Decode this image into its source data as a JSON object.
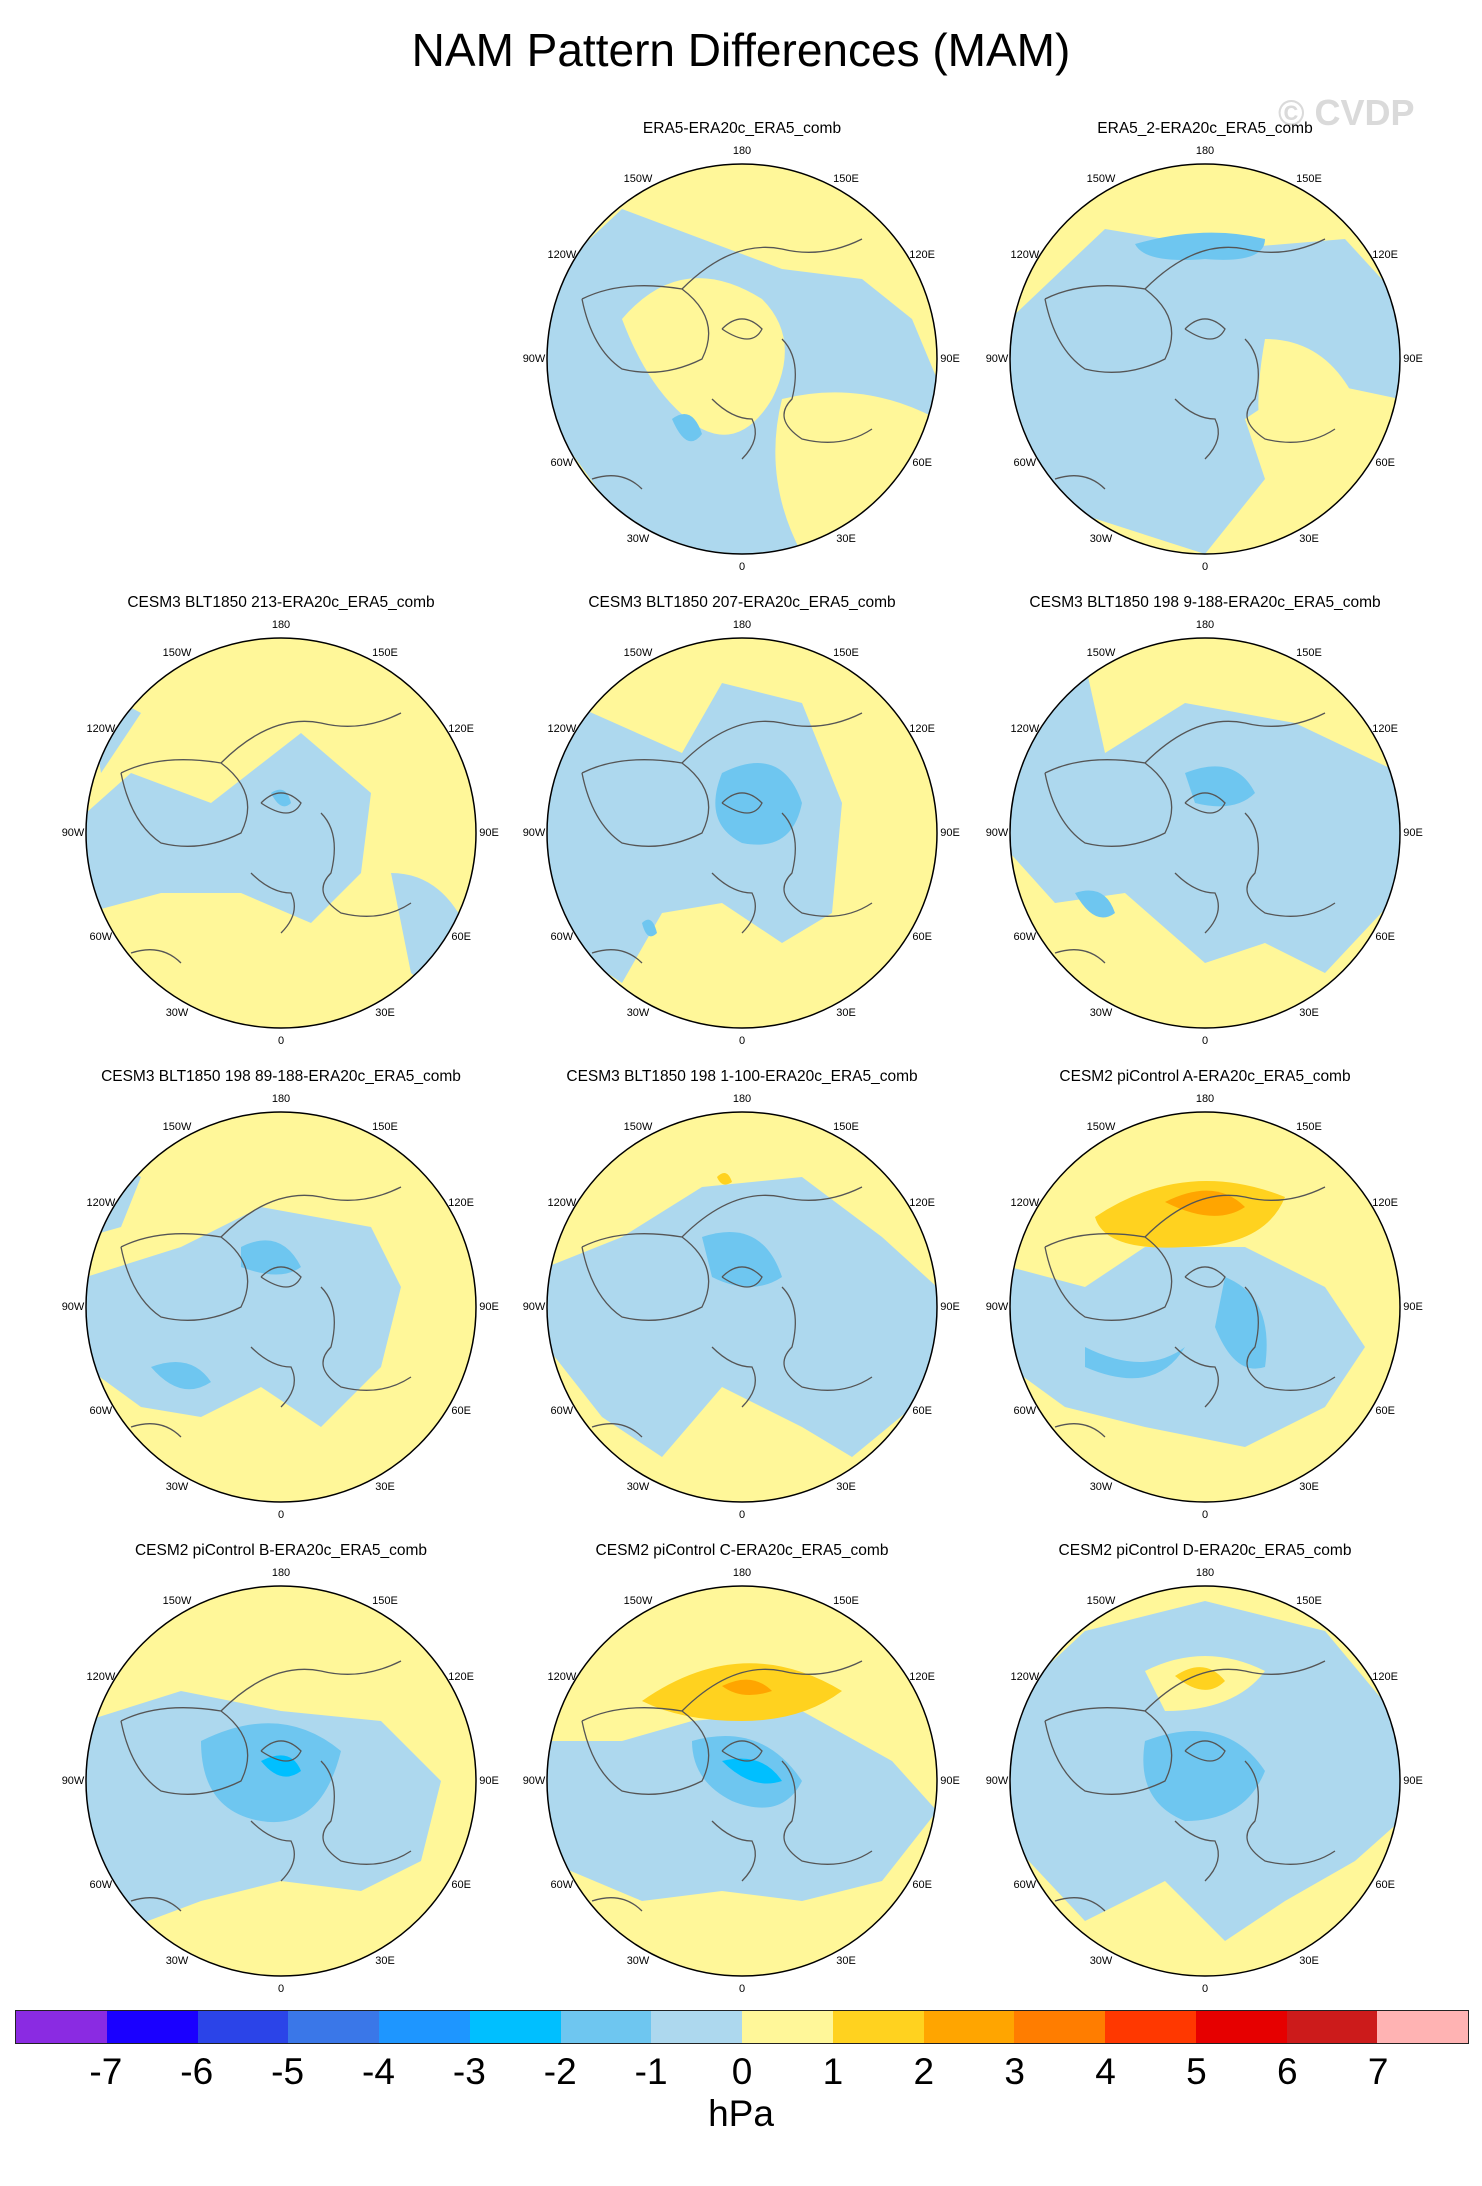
{
  "title": "NAM Pattern Differences (MAM)",
  "watermark": "© CVDP",
  "lon_labels": [
    "180",
    "150E",
    "120E",
    "90E",
    "60E",
    "30E",
    "0",
    "30W",
    "60W",
    "90W",
    "120W",
    "150W"
  ],
  "panels": [
    {
      "title": "ERA5-ERA20c_ERA5_comb",
      "pattern": "A"
    },
    {
      "title": "ERA5_2-ERA20c_ERA5_comb",
      "pattern": "B"
    },
    {
      "title": "CESM3 BLT1850 213-ERA20c_ERA5_comb",
      "pattern": "C"
    },
    {
      "title": "CESM3 BLT1850 207-ERA20c_ERA5_comb",
      "pattern": "D"
    },
    {
      "title": "CESM3 BLT1850 198 9-188-ERA20c_ERA5_comb",
      "pattern": "E"
    },
    {
      "title": "CESM3 BLT1850 198 89-188-ERA20c_ERA5_comb",
      "pattern": "F"
    },
    {
      "title": "CESM3 BLT1850 198 1-100-ERA20c_ERA5_comb",
      "pattern": "G"
    },
    {
      "title": "CESM2 piControl A-ERA20c_ERA5_comb",
      "pattern": "H"
    },
    {
      "title": "CESM2 piControl B-ERA20c_ERA5_comb",
      "pattern": "I"
    },
    {
      "title": "CESM2 piControl C-ERA20c_ERA5_comb",
      "pattern": "J"
    },
    {
      "title": "CESM2 piControl D-ERA20c_ERA5_comb",
      "pattern": "K"
    }
  ],
  "colorbar": {
    "colors": [
      "#8a2be2",
      "#1a00ff",
      "#2b44e8",
      "#3a77e8",
      "#1e96ff",
      "#00bfff",
      "#6ec6f0",
      "#add8ee",
      "#fff799",
      "#ffd21f",
      "#ffa500",
      "#ff7d00",
      "#ff3800",
      "#e60000",
      "#cc1b1b",
      "#ffb3b3"
    ],
    "ticks": [
      "-7",
      "-6",
      "-5",
      "-4",
      "-3",
      "-2",
      "-1",
      "0",
      "1",
      "2",
      "3",
      "4",
      "5",
      "6",
      "7"
    ],
    "units": "hPa"
  },
  "colors": {
    "pos1": "#fff799",
    "neg1": "#add8ee",
    "neg2": "#6ec6f0",
    "neg3": "#00bfff",
    "pos2": "#ffd21f",
    "pos3": "#ffa500",
    "coast": "#555555"
  }
}
